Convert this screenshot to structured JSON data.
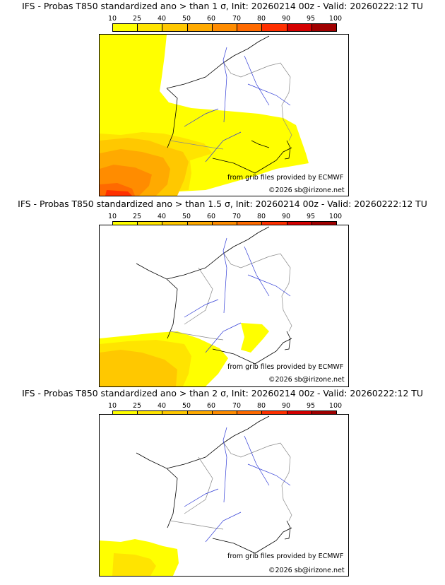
{
  "panels": [
    {
      "title": "IFS - Probas T850  standardized ano > than 1 σ, Init: 20260214 00z - Valid: 20260222:12 TU",
      "threshold": "1"
    },
    {
      "title": "IFS - Probas T850  standardized ano > than 1.5 σ, Init: 20260214 00z - Valid: 20260222:12 TU",
      "threshold": "1.5"
    },
    {
      "title": "IFS - Probas T850  standardized ano > than 2 σ, Init: 20260214 00z - Valid: 20260222:12 TU",
      "threshold": "2"
    }
  ],
  "scale": {
    "labels": [
      "10",
      "25",
      "40",
      "50",
      "60",
      "70",
      "80",
      "90",
      "95",
      "100"
    ],
    "colors": [
      "#ffff00",
      "#ffe400",
      "#ffc800",
      "#ffaa00",
      "#ff8c00",
      "#ff6a00",
      "#ff3000",
      "#d40000",
      "#a00000",
      "#600000"
    ]
  },
  "credits": {
    "source": "from grib files provided by ECMWF",
    "copyright": "©2026 sb@irizone.net"
  }
}
